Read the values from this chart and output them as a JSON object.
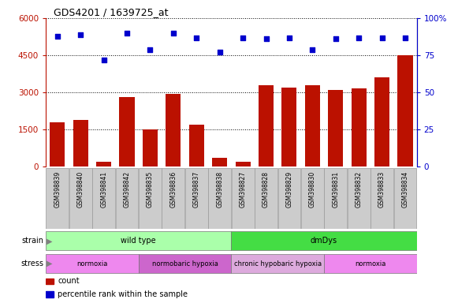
{
  "title": "GDS4201 / 1639725_at",
  "samples": [
    "GSM398839",
    "GSM398840",
    "GSM398841",
    "GSM398842",
    "GSM398835",
    "GSM398836",
    "GSM398837",
    "GSM398838",
    "GSM398827",
    "GSM398828",
    "GSM398829",
    "GSM398830",
    "GSM398831",
    "GSM398832",
    "GSM398833",
    "GSM398834"
  ],
  "counts": [
    1800,
    1900,
    200,
    2800,
    1500,
    2950,
    1700,
    350,
    200,
    3300,
    3200,
    3300,
    3100,
    3150,
    3600,
    4500
  ],
  "percentile_ranks": [
    88,
    89,
    72,
    90,
    79,
    90,
    87,
    77,
    87,
    86,
    87,
    79,
    86,
    87,
    87,
    87
  ],
  "bar_color": "#bb1100",
  "dot_color": "#0000cc",
  "left_yaxis_color": "#bb1100",
  "right_yaxis_color": "#0000cc",
  "left_ylim": [
    0,
    6000
  ],
  "right_ylim": [
    0,
    100
  ],
  "left_yticks": [
    0,
    1500,
    3000,
    4500,
    6000
  ],
  "left_yticklabels": [
    "0",
    "1500",
    "3000",
    "4500",
    "6000"
  ],
  "right_yticks": [
    0,
    25,
    50,
    75,
    100
  ],
  "right_yticklabels": [
    "0",
    "25",
    "50",
    "75",
    "100%"
  ],
  "strain_labels": [
    {
      "text": "wild type",
      "start": 0,
      "end": 8,
      "color": "#aaffaa"
    },
    {
      "text": "dmDys",
      "start": 8,
      "end": 16,
      "color": "#44dd44"
    }
  ],
  "stress_labels": [
    {
      "text": "normoxia",
      "start": 0,
      "end": 4,
      "color": "#ee88ee"
    },
    {
      "text": "normobaric hypoxia",
      "start": 4,
      "end": 8,
      "color": "#cc66cc"
    },
    {
      "text": "chronic hypobaric hypoxia",
      "start": 8,
      "end": 12,
      "color": "#ddaadd"
    },
    {
      "text": "normoxia",
      "start": 12,
      "end": 16,
      "color": "#ee88ee"
    }
  ],
  "legend_count_color": "#bb1100",
  "legend_pct_color": "#0000cc",
  "background_color": "#ffffff",
  "grid_color": "#000000",
  "tick_label_bg": "#cccccc"
}
